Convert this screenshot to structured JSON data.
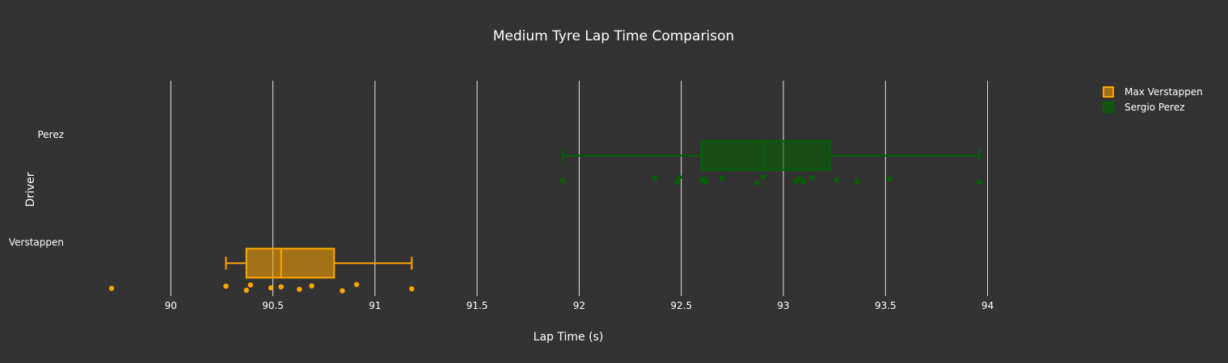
{
  "chart_data": {
    "type": "box",
    "title": "Medium Tyre Lap Time Comparison",
    "xlabel": "Lap Time (s)",
    "ylabel": "Driver",
    "xlim": [
      89.5,
      94.35
    ],
    "xticks": [
      90,
      90.5,
      91,
      91.5,
      92,
      92.5,
      93,
      93.5,
      94
    ],
    "xtick_labels": [
      "90",
      "90.5",
      "91",
      "91.5",
      "92",
      "92.5",
      "93",
      "93.5",
      "94"
    ],
    "categories": [
      "Verstappen",
      "Perez"
    ],
    "grid": true,
    "legend_position": "top-right",
    "series": [
      {
        "name": "Max Verstappen",
        "category": "Verstappen",
        "color": "#ffa500",
        "whisker_low": 90.27,
        "q1": 90.37,
        "median": 90.54,
        "q3": 90.8,
        "whisker_high": 91.18,
        "points": [
          89.71,
          90.27,
          90.37,
          90.39,
          90.49,
          90.54,
          90.63,
          90.69,
          90.84,
          90.91,
          91.18
        ]
      },
      {
        "name": "Sergio Perez",
        "category": "Perez",
        "color": "#006400",
        "whisker_low": 91.92,
        "q1": 92.6,
        "median": 92.9,
        "q3": 93.23,
        "whisker_high": 93.96,
        "points": [
          91.92,
          92.37,
          92.48,
          92.49,
          92.6,
          92.61,
          92.62,
          92.7,
          92.87,
          92.9,
          93.06,
          93.08,
          93.1,
          93.14,
          93.26,
          93.36,
          93.52,
          93.96
        ]
      }
    ]
  }
}
